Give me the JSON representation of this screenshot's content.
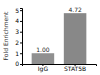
{
  "chart_data": {
    "type": "bar",
    "categories": [
      "IgG",
      "STAT5B"
    ],
    "values": [
      1.0,
      4.72
    ],
    "value_labels": [
      "1.00",
      "4.72"
    ],
    "data_labels": true,
    "ylabel": "Fold Enrichment",
    "ylim": [
      0,
      5.2
    ],
    "yticks": [
      0,
      1,
      2,
      3,
      4,
      5
    ],
    "colors": [
      "#909090",
      "#888888"
    ],
    "grid": false
  }
}
